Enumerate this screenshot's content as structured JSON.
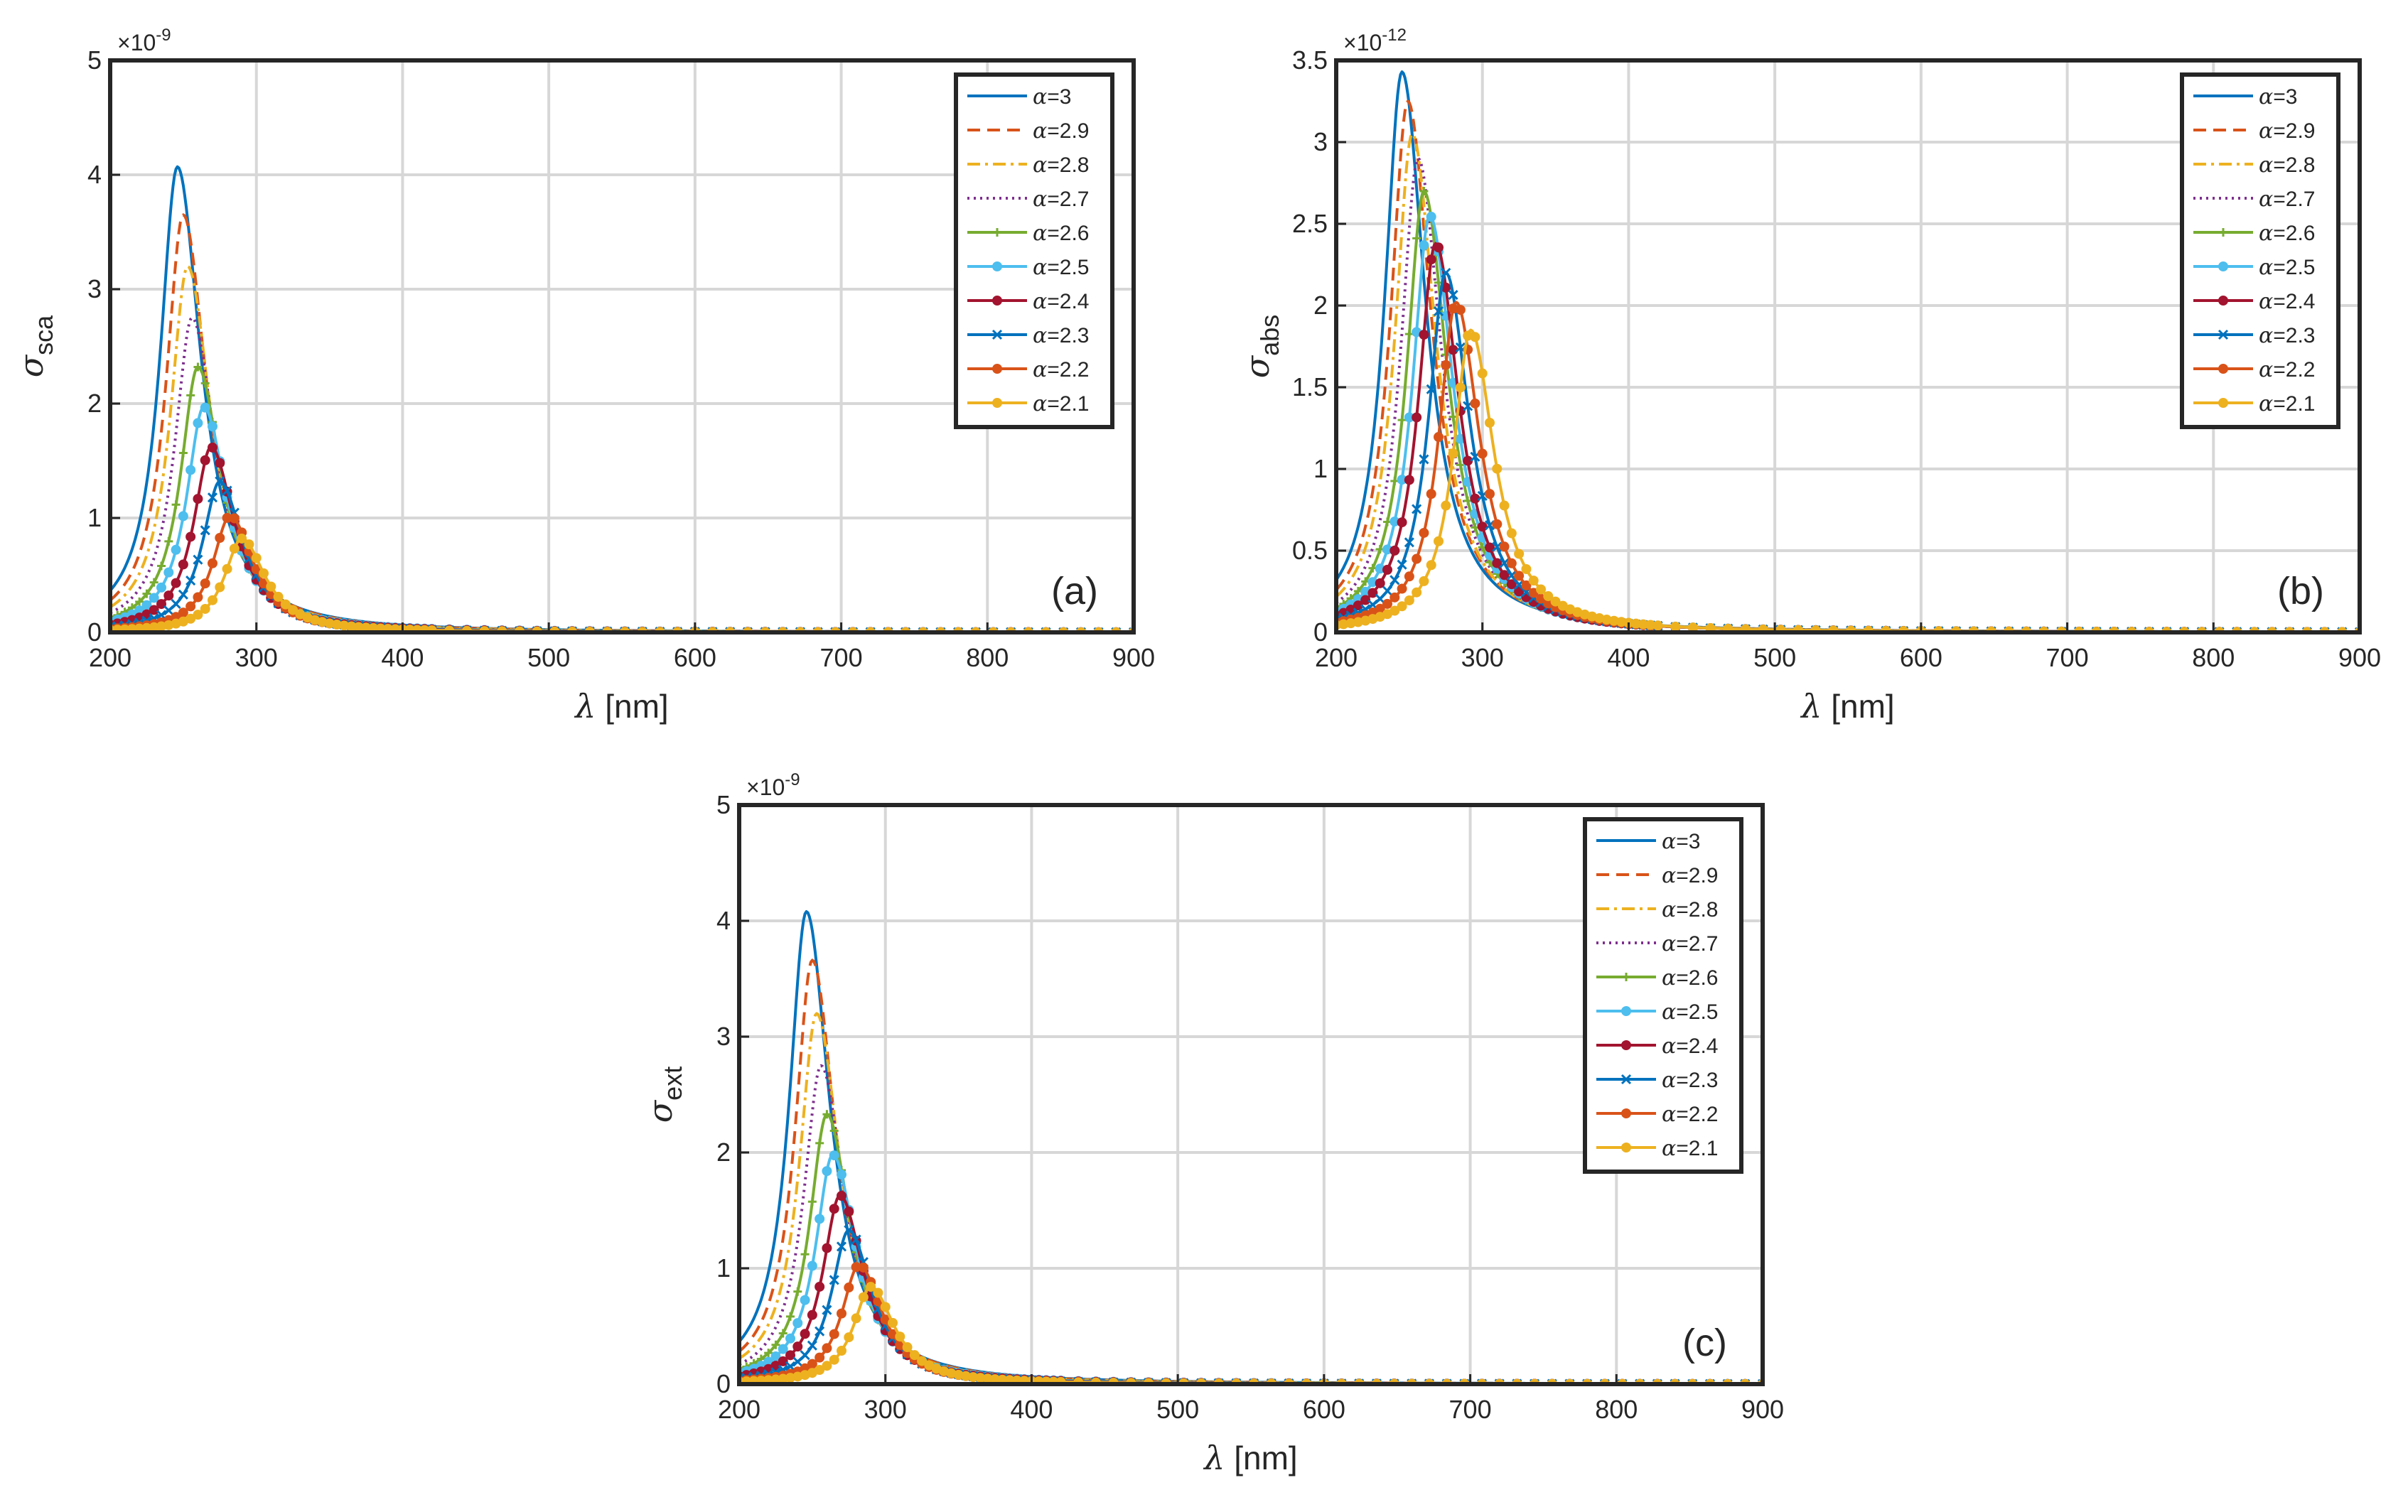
{
  "figure": {
    "panels_note": "three panels showing cross-section spectra for alpha = 3 ... 2.1"
  },
  "legend_series": [
    {
      "name": "α=3",
      "color": "#0072BD",
      "style": "solid",
      "marker": "none"
    },
    {
      "name": "α=2.9",
      "color": "#D95319",
      "style": "dashed",
      "marker": "none"
    },
    {
      "name": "α=2.8",
      "color": "#EDB120",
      "style": "dashdot",
      "marker": "none"
    },
    {
      "name": "α=2.7",
      "color": "#7E2F8E",
      "style": "dotted",
      "marker": "none"
    },
    {
      "name": "α=2.6",
      "color": "#77AC30",
      "style": "solid",
      "marker": "plus"
    },
    {
      "name": "α=2.5",
      "color": "#4DBEEE",
      "style": "solid",
      "marker": "circle"
    },
    {
      "name": "α=2.4",
      "color": "#A2142F",
      "style": "solid",
      "marker": "circle"
    },
    {
      "name": "α=2.3",
      "color": "#0072BD",
      "style": "solid",
      "marker": "x"
    },
    {
      "name": "α=2.2",
      "color": "#D95319",
      "style": "solid",
      "marker": "circle"
    },
    {
      "name": "α=2.1",
      "color": "#EDB120",
      "style": "solid",
      "marker": "circle"
    }
  ],
  "chart_data": [
    {
      "id": "a",
      "type": "line",
      "panel_label": "(a)",
      "title": "",
      "xlabel": "λ [nm]",
      "ylabel_symbol": "σ",
      "ylabel_sub": "sca",
      "exponent_label": "×10",
      "exponent_power": "-9",
      "xlim": [
        200,
        900
      ],
      "ylim": [
        0,
        5
      ],
      "xticks": [
        200,
        300,
        400,
        500,
        600,
        700,
        800,
        900
      ],
      "yticks": [
        0,
        1,
        2,
        3,
        4,
        5
      ],
      "ytick_labels": [
        "0",
        "1",
        "2",
        "3",
        "4",
        "5"
      ],
      "grid": true,
      "legend_location": "top-right",
      "series": [
        {
          "name": "α=3",
          "peak_x": 246,
          "peak_y": 4.07,
          "width": 17
        },
        {
          "name": "α=2.9",
          "peak_x": 250,
          "peak_y": 3.65,
          "width": 17
        },
        {
          "name": "α=2.8",
          "peak_x": 253,
          "peak_y": 3.2,
          "width": 17
        },
        {
          "name": "α=2.7",
          "peak_x": 256,
          "peak_y": 2.75,
          "width": 17
        },
        {
          "name": "α=2.6",
          "peak_x": 260,
          "peak_y": 2.32,
          "width": 17
        },
        {
          "name": "α=2.5",
          "peak_x": 264,
          "peak_y": 1.97,
          "width": 17
        },
        {
          "name": "α=2.4",
          "peak_x": 269,
          "peak_y": 1.62,
          "width": 17
        },
        {
          "name": "α=2.3",
          "peak_x": 275,
          "peak_y": 1.32,
          "width": 17
        },
        {
          "name": "α=2.2",
          "peak_x": 282,
          "peak_y": 1.02,
          "width": 17
        },
        {
          "name": "α=2.1",
          "peak_x": 290,
          "peak_y": 0.82,
          "width": 17
        }
      ]
    },
    {
      "id": "b",
      "type": "line",
      "panel_label": "(b)",
      "title": "",
      "xlabel": "λ [nm]",
      "ylabel_symbol": "σ",
      "ylabel_sub": "abs",
      "exponent_label": "×10",
      "exponent_power": "-12",
      "xlim": [
        200,
        900
      ],
      "ylim": [
        0,
        3.5
      ],
      "xticks": [
        200,
        300,
        400,
        500,
        600,
        700,
        800,
        900
      ],
      "yticks": [
        0,
        0.5,
        1,
        1.5,
        2,
        2.5,
        3,
        3.5
      ],
      "ytick_labels": [
        "0",
        "0.5",
        "1",
        "1.5",
        "2",
        "2.5",
        "3",
        "3.5"
      ],
      "grid": true,
      "legend_location": "top-right",
      "series": [
        {
          "name": "α=3",
          "peak_x": 245,
          "peak_y": 3.43,
          "width": 17
        },
        {
          "name": "α=2.9",
          "peak_x": 249,
          "peak_y": 3.25,
          "width": 17
        },
        {
          "name": "α=2.8",
          "peak_x": 252,
          "peak_y": 3.05,
          "width": 17
        },
        {
          "name": "α=2.7",
          "peak_x": 256,
          "peak_y": 2.9,
          "width": 17
        },
        {
          "name": "α=2.6",
          "peak_x": 260,
          "peak_y": 2.7,
          "width": 17
        },
        {
          "name": "α=2.5",
          "peak_x": 264,
          "peak_y": 2.55,
          "width": 17
        },
        {
          "name": "α=2.4",
          "peak_x": 268,
          "peak_y": 2.38,
          "width": 17
        },
        {
          "name": "α=2.3",
          "peak_x": 275,
          "peak_y": 2.2,
          "width": 17
        },
        {
          "name": "α=2.2",
          "peak_x": 282,
          "peak_y": 2.02,
          "width": 17
        },
        {
          "name": "α=2.1",
          "peak_x": 292,
          "peak_y": 1.85,
          "width": 17
        }
      ]
    },
    {
      "id": "c",
      "type": "line",
      "panel_label": "(c)",
      "title": "",
      "xlabel": "λ [nm]",
      "ylabel_symbol": "σ",
      "ylabel_sub": "ext",
      "exponent_label": "×10",
      "exponent_power": "-9",
      "xlim": [
        200,
        900
      ],
      "ylim": [
        0,
        5
      ],
      "xticks": [
        200,
        300,
        400,
        500,
        600,
        700,
        800,
        900
      ],
      "yticks": [
        0,
        1,
        2,
        3,
        4,
        5
      ],
      "ytick_labels": [
        "0",
        "1",
        "2",
        "3",
        "4",
        "5"
      ],
      "grid": true,
      "legend_location": "top-right",
      "series": [
        {
          "name": "α=3",
          "peak_x": 246,
          "peak_y": 4.08,
          "width": 17
        },
        {
          "name": "α=2.9",
          "peak_x": 250,
          "peak_y": 3.66,
          "width": 17
        },
        {
          "name": "α=2.8",
          "peak_x": 253,
          "peak_y": 3.2,
          "width": 17
        },
        {
          "name": "α=2.7",
          "peak_x": 256,
          "peak_y": 2.75,
          "width": 17
        },
        {
          "name": "α=2.6",
          "peak_x": 260,
          "peak_y": 2.33,
          "width": 17
        },
        {
          "name": "α=2.5",
          "peak_x": 264,
          "peak_y": 1.98,
          "width": 17
        },
        {
          "name": "α=2.4",
          "peak_x": 269,
          "peak_y": 1.63,
          "width": 17
        },
        {
          "name": "α=2.3",
          "peak_x": 275,
          "peak_y": 1.33,
          "width": 17
        },
        {
          "name": "α=2.2",
          "peak_x": 282,
          "peak_y": 1.03,
          "width": 17
        },
        {
          "name": "α=2.1",
          "peak_x": 290,
          "peak_y": 0.84,
          "width": 17
        }
      ]
    }
  ]
}
